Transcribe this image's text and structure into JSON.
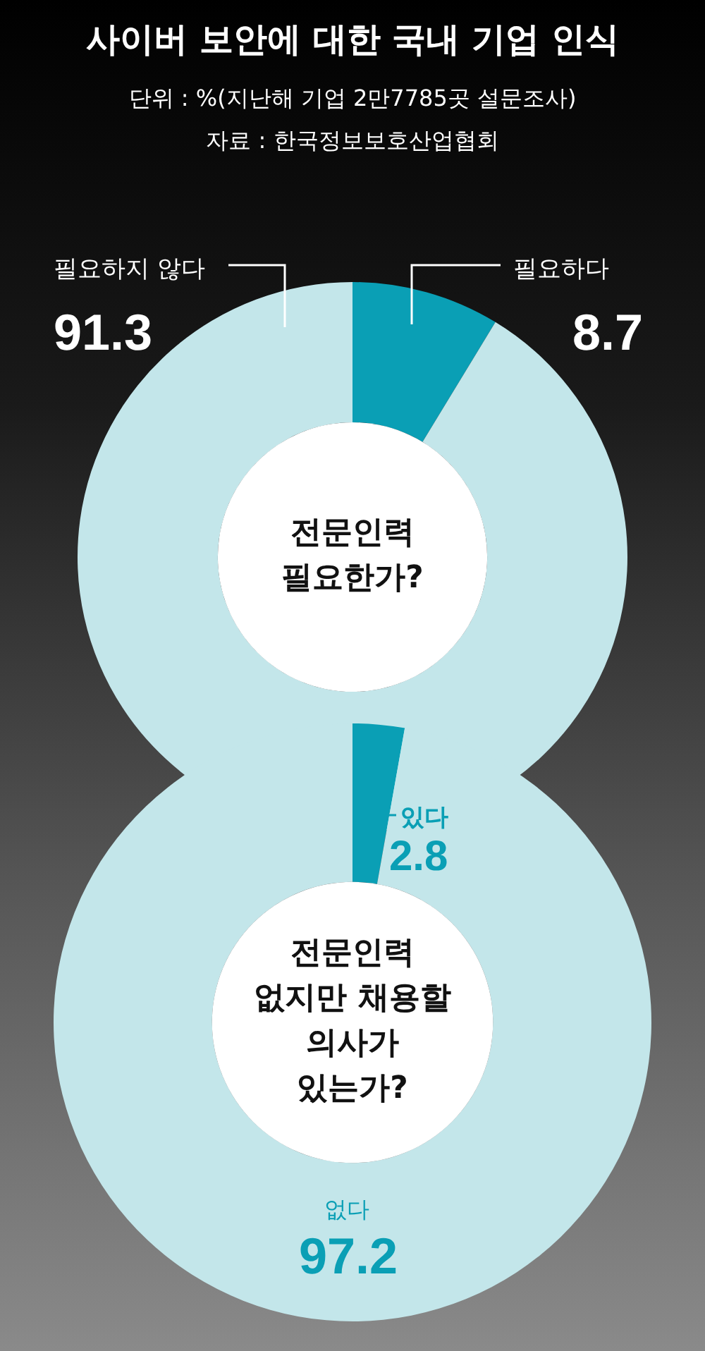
{
  "chart_data": [
    {
      "type": "donut",
      "title": "사이버 보안에 대한 국내 기업 인식",
      "subtitle": "단위 : %(지난해 기업 2만7785곳 설문조사)",
      "annotations": [
        "자료 : 한국정보보호산업협회",
        "전문인력\n필요한가?"
      ],
      "categories": [
        "필요하다",
        "필요하지 않다"
      ],
      "values": [
        8.7,
        91.3
      ],
      "colors": [
        "#0a9fb5",
        "#c3e6ea"
      ],
      "data_labels": true
    },
    {
      "type": "donut",
      "annotations": [
        "전문인력\n없지만 채용할\n의사가\n있는가?"
      ],
      "categories": [
        "있다",
        "없다"
      ],
      "values": [
        2.8,
        97.2
      ],
      "colors": [
        "#0a9fb5",
        "#c3e6ea"
      ],
      "data_labels": true
    }
  ]
}
